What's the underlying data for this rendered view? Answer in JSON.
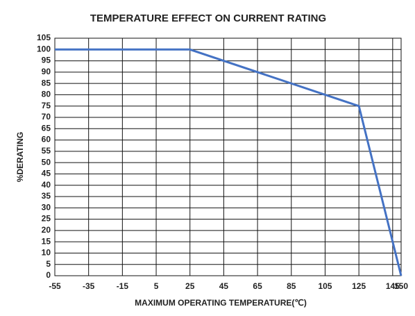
{
  "chart_data": {
    "type": "line",
    "title": "TEMPERATURE  EFFECT  ON  CURRENT  RATING",
    "xlabel": "MAXIMUM OPERATING TEMPERATURE(℃)",
    "ylabel": "%DERATING",
    "x": [
      -55,
      25,
      125,
      150
    ],
    "series": [
      {
        "name": "Derating",
        "color": "#4472c4",
        "values": [
          100,
          100,
          75,
          0
        ]
      }
    ],
    "xlim": [
      -55,
      150
    ],
    "xticks": [
      -55,
      -35,
      -15,
      5,
      25,
      45,
      65,
      85,
      105,
      125,
      145,
      150
    ],
    "ylim": [
      0,
      105
    ],
    "yticks": [
      0,
      5,
      10,
      15,
      20,
      25,
      30,
      35,
      40,
      45,
      50,
      55,
      60,
      65,
      70,
      75,
      80,
      85,
      90,
      95,
      100,
      105
    ],
    "grid": true
  }
}
